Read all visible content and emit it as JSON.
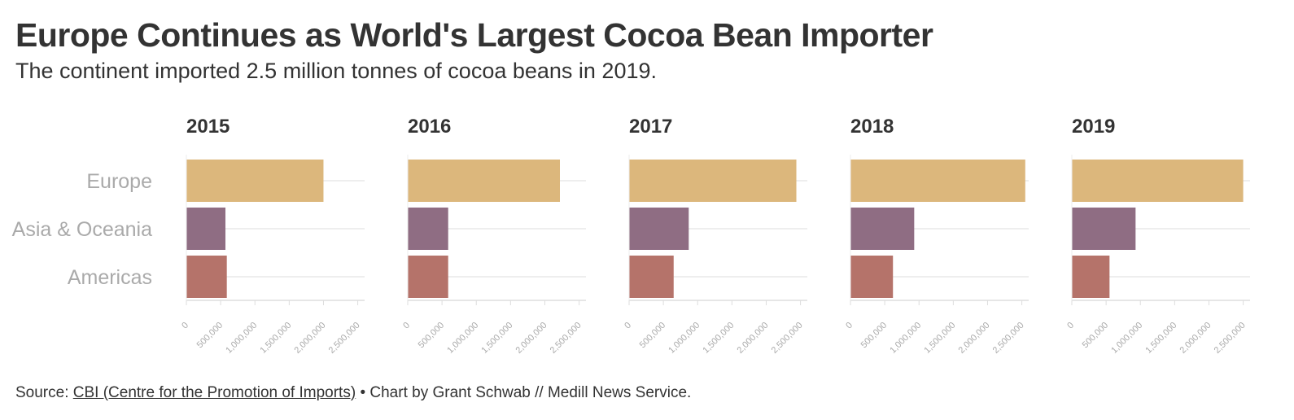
{
  "title": "Europe Continues as World's Largest Cocoa Bean Importer",
  "subtitle": "The continent imported 2.5 million tonnes of cocoa beans in 2019.",
  "footer": {
    "source_prefix": "Source: ",
    "source_link": "CBI (Centre for the Promotion of Imports)",
    "credit": " • Chart by Grant Schwab // Medill News Service."
  },
  "chart_data": {
    "type": "bar",
    "orientation": "horizontal",
    "layout": "small-multiples",
    "categories": [
      "Europe",
      "Asia & Oceania",
      "Americas"
    ],
    "xlim": [
      0,
      2600000
    ],
    "ticks": [
      0,
      500000,
      1000000,
      1500000,
      2000000,
      2500000
    ],
    "tick_labels": [
      "0",
      "500,000",
      "1,000,000",
      "1,500,000",
      "2,000,000",
      "2,500,000"
    ],
    "colors": {
      "Europe": "#dcb77c",
      "Asia & Oceania": "#8f6d83",
      "Americas": "#b5736a"
    },
    "grid": true,
    "panels": [
      {
        "title": "2015",
        "values": [
          2000000,
          570000,
          590000
        ]
      },
      {
        "title": "2016",
        "values": [
          2220000,
          590000,
          590000
        ]
      },
      {
        "title": "2017",
        "values": [
          2440000,
          870000,
          650000
        ]
      },
      {
        "title": "2018",
        "values": [
          2550000,
          930000,
          620000
        ]
      },
      {
        "title": "2019",
        "values": [
          2500000,
          930000,
          550000
        ]
      }
    ]
  }
}
